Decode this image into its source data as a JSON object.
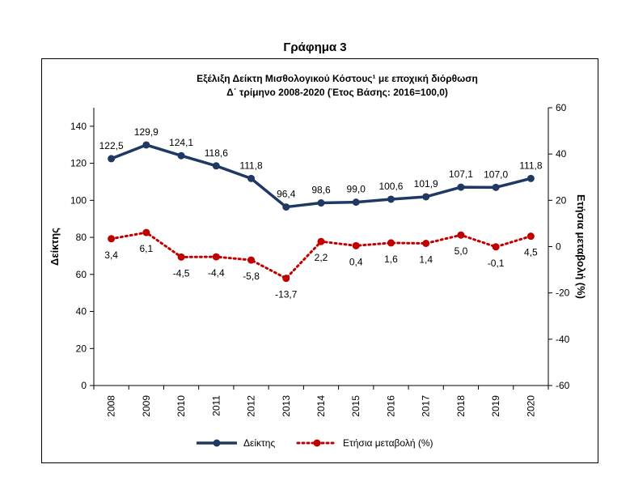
{
  "figure_heading": "Γράφημα 3",
  "chart_data": {
    "type": "line",
    "title": "Εξέλιξη Δείκτη Μισθολογικού Κόστους¹ με εποχική διόρθωση",
    "subtitle": "Δ΄ τρίμηνο 2008-2020 (Έτος Βάσης: 2016=100,0)",
    "ylabel_left": "Δείκτης",
    "ylabel_right": "Ετήσια μεταβολή (%)",
    "categories": [
      "2008",
      "2009",
      "2010",
      "2011",
      "2012",
      "2013",
      "2014",
      "2015",
      "2016",
      "2017",
      "2018",
      "2019",
      "2020"
    ],
    "y_left": {
      "range": [
        0,
        150
      ],
      "ticks": [
        "0",
        "20",
        "40",
        "60",
        "80",
        "100",
        "120",
        "140"
      ]
    },
    "y_right": {
      "range": [
        -60,
        60
      ],
      "ticks": [
        "-60",
        "-40",
        "-20",
        "0",
        "20",
        "40",
        "60"
      ]
    },
    "series": [
      {
        "name": "Δείκτης",
        "axis": "left",
        "color": "#1f3864",
        "style": "solid",
        "values": [
          122.5,
          129.9,
          124.1,
          118.6,
          111.8,
          96.4,
          98.6,
          99.0,
          100.6,
          101.9,
          107.1,
          107.0,
          111.8
        ],
        "labels": [
          "122,5",
          "129,9",
          "124,1",
          "118,6",
          "111,8",
          "96,4",
          "98,6",
          "99,0",
          "100,6",
          "101,9",
          "107,1",
          "107,0",
          "111,8"
        ]
      },
      {
        "name": "Ετήσια μεταβολή (%)",
        "axis": "right",
        "color": "#c00000",
        "style": "dotted",
        "values": [
          3.4,
          6.1,
          -4.5,
          -4.4,
          -5.8,
          -13.7,
          2.2,
          0.4,
          1.6,
          1.4,
          5.0,
          -0.1,
          4.5
        ],
        "labels": [
          "3,4",
          "6,1",
          "-4,5",
          "-4,4",
          "-5,8",
          "-13,7",
          "2,2",
          "0,4",
          "1,6",
          "1,4",
          "5,0",
          "-0,1",
          "4,5"
        ]
      }
    ],
    "grid": false,
    "legend_position": "bottom"
  }
}
